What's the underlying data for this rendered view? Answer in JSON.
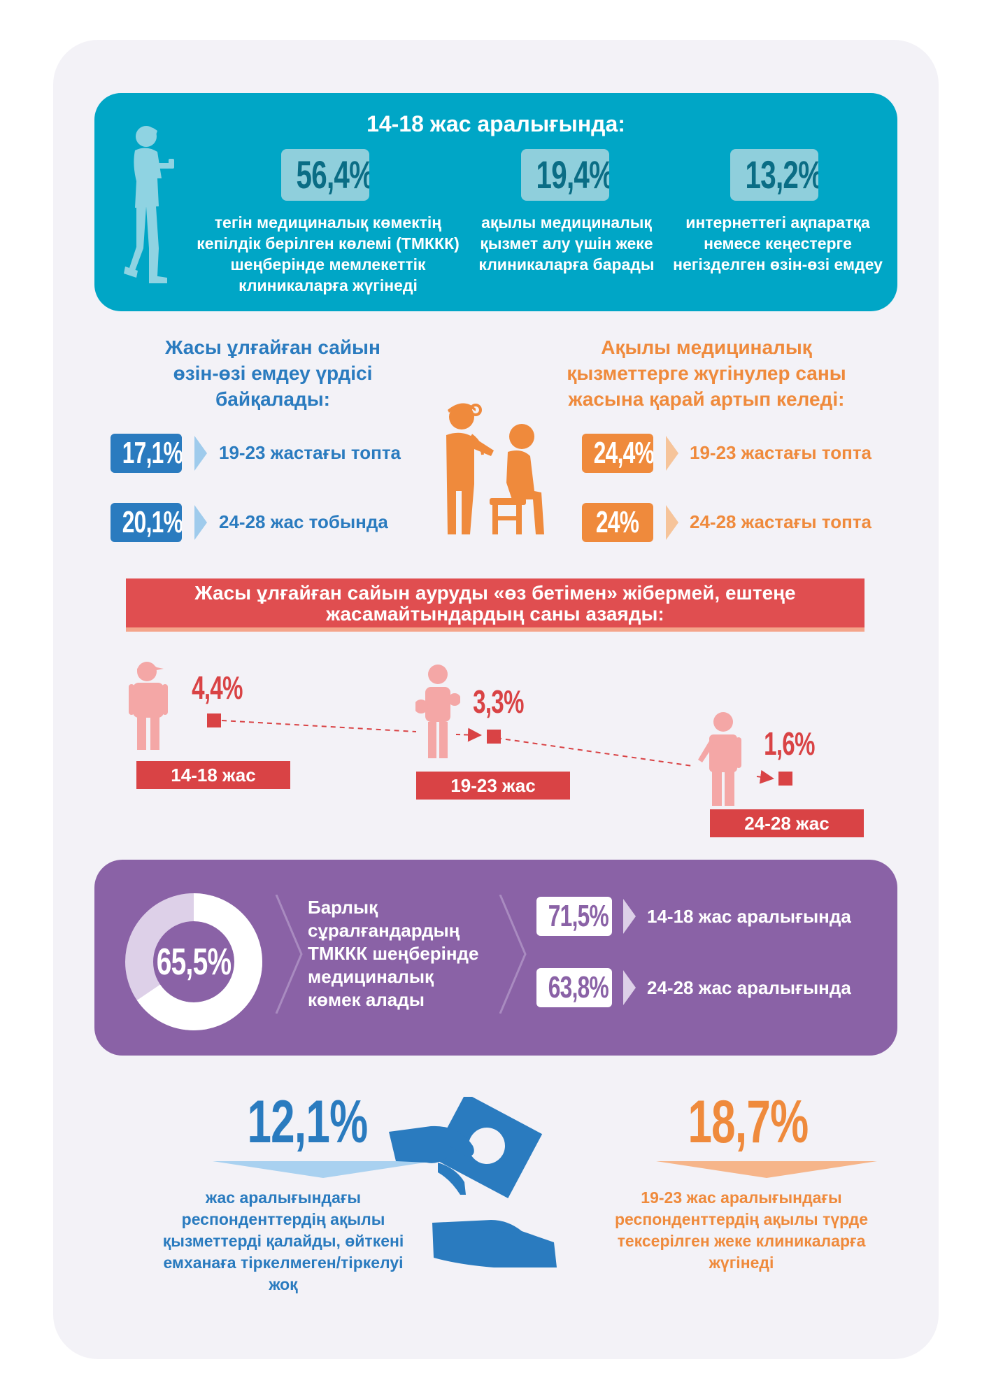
{
  "section1": {
    "title": "14-18 жас аралығында:",
    "stats": [
      {
        "value": "56,4%",
        "desc": "тегін медициналық көмектің кепілдік берілген көлемі (ТМККК) шеңберінде мемлекеттік клиникаларға жүгінеді"
      },
      {
        "value": "19,4%",
        "desc": "ақылы медициналық қызмет алу үшін жеке клиникаларға барады"
      },
      {
        "value": "13,2%",
        "desc": "интернеттегі ақпаратқа немесе кеңестерге негізделген өзін-өзі емдеу"
      }
    ],
    "icon": "teenager-with-phone-icon"
  },
  "section2": {
    "left": {
      "title": "Жасы ұлғайған сайын өзін-өзі емдеу үрдісі байқалады:",
      "color": "#2a7bbf",
      "items": [
        {
          "value": "17,1%",
          "label": "19-23 жастағы топта"
        },
        {
          "value": "20,1%",
          "label": "24-28 жас тобында"
        }
      ]
    },
    "right": {
      "title": "Ақылы медициналық қызметтерге жүгінулер саны жасына қарай артып келеді:",
      "color": "#ef8a3c",
      "items": [
        {
          "value": "24,4%",
          "label": "19-23 жастағы топта"
        },
        {
          "value": "24%",
          "label": "24-28 жастағы топта"
        }
      ]
    },
    "icon": "doctor-patient-icon"
  },
  "section3": {
    "banner": "Жасы ұлғайған сайын ауруды «өз бетімен» жібермей, ештеңе жасамайтындардың саны азаяды:",
    "groups": [
      {
        "value": "4,4%",
        "age": "14-18 жас",
        "icon": "teen-cap-person-icon"
      },
      {
        "value": "3,3%",
        "age": "19-23 жас",
        "icon": "student-person-icon"
      },
      {
        "value": "1,6%",
        "age": "24-28 жас",
        "icon": "business-person-icon"
      }
    ],
    "color": "#d94345"
  },
  "section4": {
    "donut_value": "65,5%",
    "donut_fraction": 0.655,
    "text": "Барлық сұралғандардың ТМККК шеңберінде медициналық көмек алады",
    "items": [
      {
        "value": "71,5%",
        "label": "14-18 жас аралығында"
      },
      {
        "value": "63,8%",
        "label": "24-28 жас аралығында"
      }
    ]
  },
  "section5": {
    "left": {
      "value": "12,1%",
      "desc": "жас аралығындағы респонденттердің ақылы қызметтерді қалайды, өйткені емханаға тіркелмеген/тіркелуі жоқ",
      "color": "#2a7bbf"
    },
    "right": {
      "value": "18,7%",
      "desc": "19-23 жас аралығындағы респонденттердің ақылы түрде тексерілген жеке клиникаларға жүгінеді",
      "color": "#ef8a3c"
    },
    "icon": "hand-paying-money-icon"
  }
}
